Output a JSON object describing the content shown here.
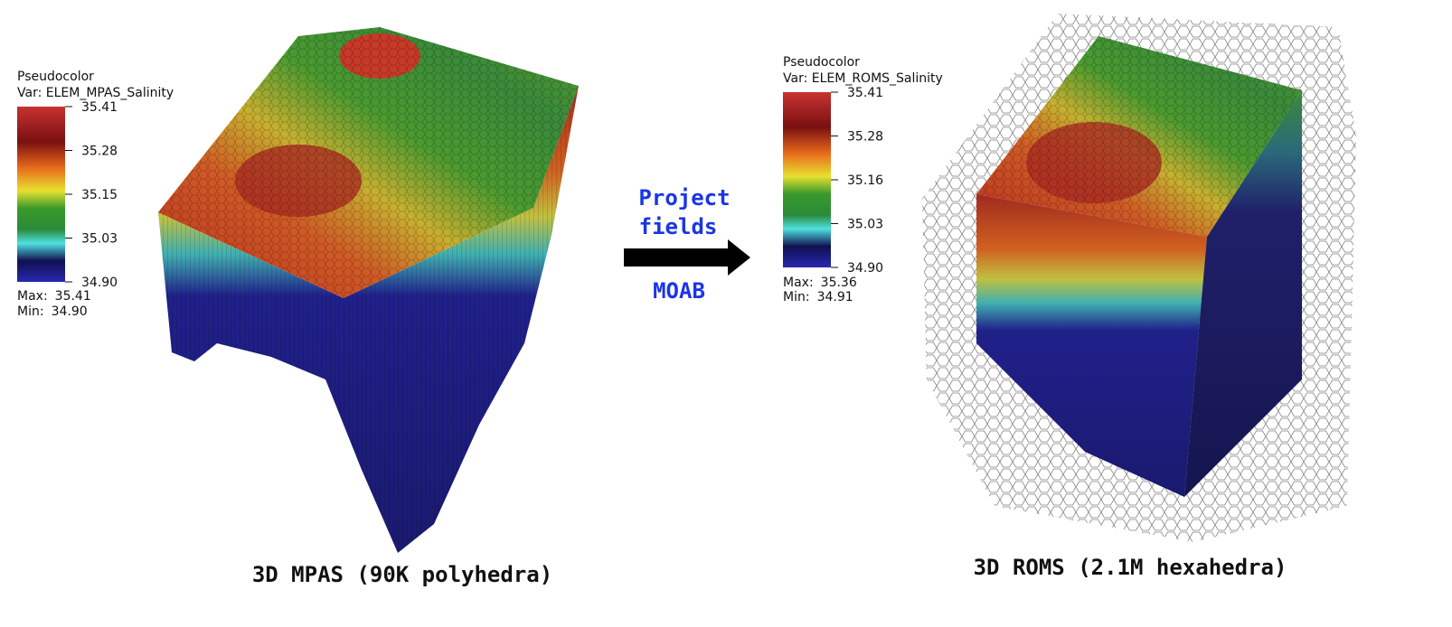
{
  "left_panel": {
    "legend": {
      "title": "Pseudocolor",
      "variable": "Var: ELEM_MPAS_Salinity",
      "ticks": [
        "35.41",
        "35.28",
        "35.15",
        "35.03",
        "34.90"
      ],
      "max_label": "Max:",
      "max_value": "35.41",
      "min_label": "Min:",
      "min_value": "34.90"
    },
    "caption": "3D MPAS (90K polyhedra)"
  },
  "arrow": {
    "top_lines": [
      "Project",
      "fields"
    ],
    "bottom": "MOAB"
  },
  "right_panel": {
    "legend": {
      "title": "Pseudocolor",
      "variable": "Var: ELEM_ROMS_Salinity",
      "ticks": [
        "35.41",
        "35.28",
        "35.16",
        "35.03",
        "34.90"
      ],
      "max_label": "Max:",
      "max_value": "35.36",
      "min_label": "Min:",
      "min_value": "34.91"
    },
    "caption": "3D ROMS (2.1M hexahedra)"
  }
}
